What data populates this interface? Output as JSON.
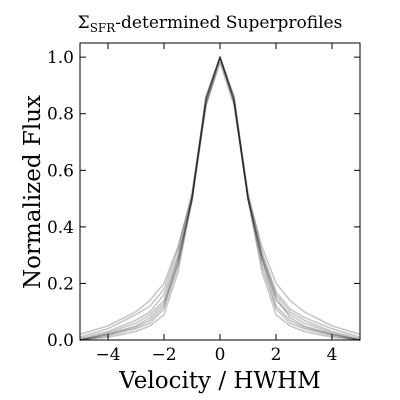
{
  "chart_data": {
    "type": "line",
    "title_main": "Σ",
    "title_sub": "SFR",
    "title_rest": "-determined Superprofiles",
    "xlabel": "Velocity / HWHM",
    "ylabel": "Normalized Flux",
    "xlim": [
      -5,
      5
    ],
    "ylim": [
      0.0,
      1.05
    ],
    "xticks": [
      -4,
      -2,
      0,
      2,
      4
    ],
    "xtick_labels": [
      "−4",
      "−2",
      "0",
      "2",
      "4"
    ],
    "yticks": [
      0.0,
      0.2,
      0.4,
      0.6,
      0.8,
      1.0
    ],
    "ytick_labels": [
      "0.0",
      "0.2",
      "0.4",
      "0.6",
      "0.8",
      "1.0"
    ],
    "grid": false,
    "legend": "none",
    "line_color": "#000000",
    "series": [
      {
        "x": [
          -5,
          -4,
          -3,
          -2.5,
          -2,
          -1.5,
          -1,
          -0.5,
          0,
          0.5,
          1,
          1.5,
          2,
          2.5,
          3,
          4,
          5
        ],
        "y": [
          0.0,
          0.02,
          0.045,
          0.07,
          0.12,
          0.28,
          0.5,
          0.85,
          1.0,
          0.85,
          0.5,
          0.28,
          0.12,
          0.07,
          0.045,
          0.02,
          0.0
        ]
      },
      {
        "x": [
          -5,
          -4,
          -3,
          -2.5,
          -2,
          -1.5,
          -1,
          -0.5,
          0,
          0.5,
          1,
          1.5,
          2,
          2.5,
          3,
          4,
          5
        ],
        "y": [
          0.005,
          0.03,
          0.07,
          0.1,
          0.16,
          0.3,
          0.5,
          0.84,
          1.0,
          0.84,
          0.5,
          0.3,
          0.16,
          0.1,
          0.07,
          0.03,
          0.005
        ]
      },
      {
        "x": [
          -5,
          -4,
          -3,
          -2.5,
          -2,
          -1.5,
          -1,
          -0.5,
          0,
          0.5,
          1,
          1.5,
          2,
          2.5,
          3,
          4,
          5
        ],
        "y": [
          0.0,
          0.01,
          0.03,
          0.05,
          0.09,
          0.24,
          0.5,
          0.86,
          1.0,
          0.86,
          0.5,
          0.24,
          0.09,
          0.05,
          0.03,
          0.01,
          0.0
        ]
      },
      {
        "x": [
          -5,
          -4,
          -3,
          -2.5,
          -2,
          -1.5,
          -1,
          -0.5,
          0,
          0.5,
          1,
          1.5,
          2,
          2.5,
          3,
          4,
          5
        ],
        "y": [
          0.01,
          0.04,
          0.09,
          0.12,
          0.18,
          0.32,
          0.52,
          0.85,
          1.0,
          0.84,
          0.5,
          0.29,
          0.15,
          0.08,
          0.05,
          0.02,
          0.0
        ]
      },
      {
        "x": [
          -5,
          -4,
          -3,
          -2.5,
          -2,
          -1.5,
          -1,
          -0.5,
          0,
          0.5,
          1,
          1.5,
          2,
          2.5,
          3,
          4,
          5
        ],
        "y": [
          0.0,
          0.02,
          0.05,
          0.08,
          0.13,
          0.27,
          0.49,
          0.83,
          0.99,
          0.85,
          0.52,
          0.31,
          0.17,
          0.11,
          0.08,
          0.04,
          0.01
        ]
      },
      {
        "x": [
          -5,
          -4,
          -3,
          -2.5,
          -2,
          -1.5,
          -1,
          -0.5,
          0,
          0.5,
          1,
          1.5,
          2,
          2.5,
          3,
          4,
          5
        ],
        "y": [
          0.0,
          0.015,
          0.04,
          0.06,
          0.11,
          0.26,
          0.5,
          0.86,
          1.0,
          0.86,
          0.5,
          0.26,
          0.11,
          0.06,
          0.04,
          0.015,
          0.0
        ]
      },
      {
        "x": [
          -5,
          -4,
          -3,
          -2.5,
          -2,
          -1.5,
          -1,
          -0.5,
          0,
          0.5,
          1,
          1.5,
          2,
          2.5,
          3,
          4,
          5
        ],
        "y": [
          0.02,
          0.05,
          0.1,
          0.14,
          0.2,
          0.33,
          0.51,
          0.83,
          0.98,
          0.83,
          0.51,
          0.33,
          0.2,
          0.14,
          0.1,
          0.05,
          0.02
        ]
      },
      {
        "x": [
          -5,
          -4,
          -3,
          -2.5,
          -2,
          -1.5,
          -1,
          -0.5,
          0,
          0.5,
          1,
          1.5,
          2,
          2.5,
          3,
          4,
          5
        ],
        "y": [
          0.0,
          0.025,
          0.06,
          0.09,
          0.14,
          0.29,
          0.5,
          0.85,
          1.0,
          0.85,
          0.5,
          0.29,
          0.14,
          0.09,
          0.06,
          0.025,
          0.0
        ]
      }
    ]
  }
}
